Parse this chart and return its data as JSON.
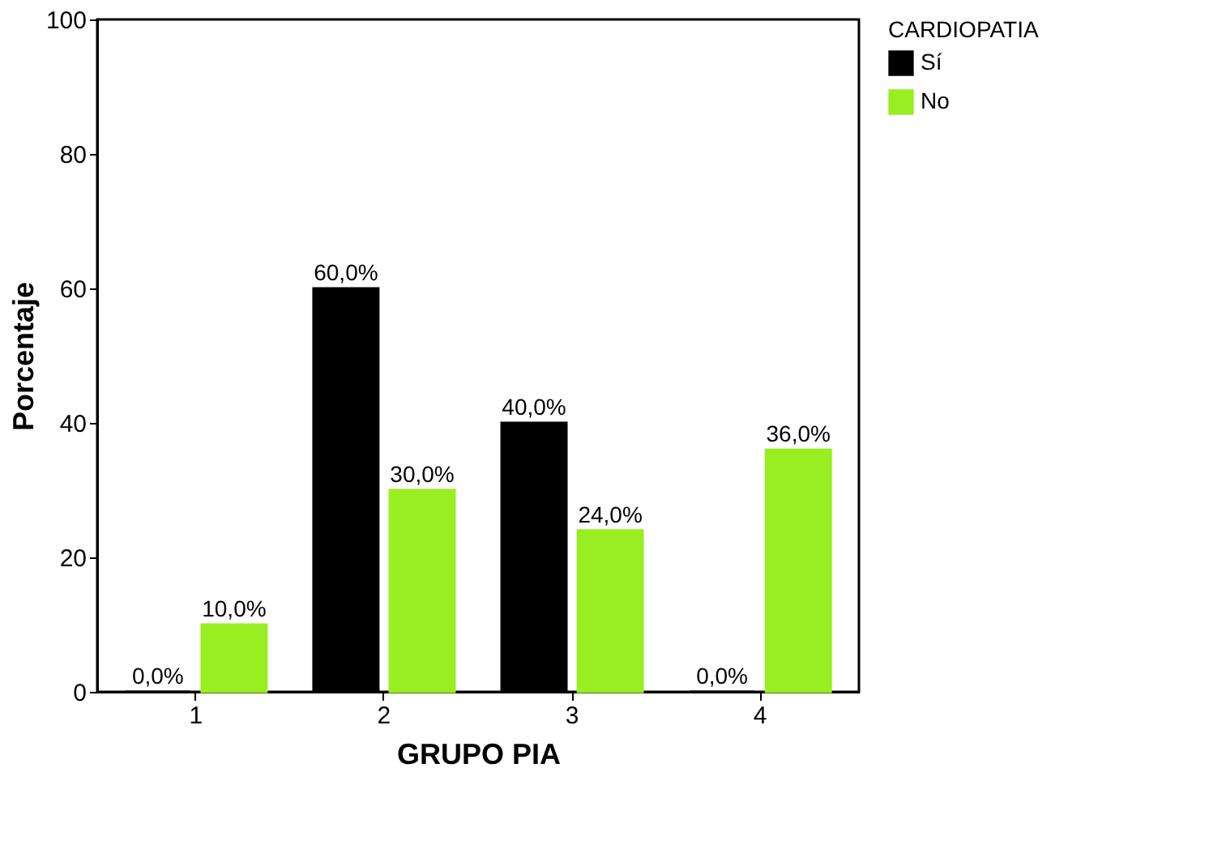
{
  "chart_data": {
    "type": "bar",
    "xlabel": "GRUPO PIA",
    "ylabel": "Porcentaje",
    "legend_title": "CARDIOPATIA",
    "legend": "top right",
    "grid": false,
    "categories": [
      "1",
      "2",
      "3",
      "4"
    ],
    "ylim": [
      0,
      100
    ],
    "yticks": [
      0,
      20,
      40,
      60,
      80,
      100
    ],
    "series": [
      {
        "name": "Sí",
        "color": "#000000",
        "values": [
          0,
          60,
          40,
          0
        ],
        "value_labels": [
          "0,0%",
          "60,0%",
          "40,0%",
          "0,0%"
        ]
      },
      {
        "name": "No",
        "color": "#99ee22",
        "values": [
          10,
          30,
          24,
          36
        ],
        "value_labels": [
          "10,0%",
          "30,0%",
          "24,0%",
          "36,0%"
        ]
      }
    ]
  }
}
